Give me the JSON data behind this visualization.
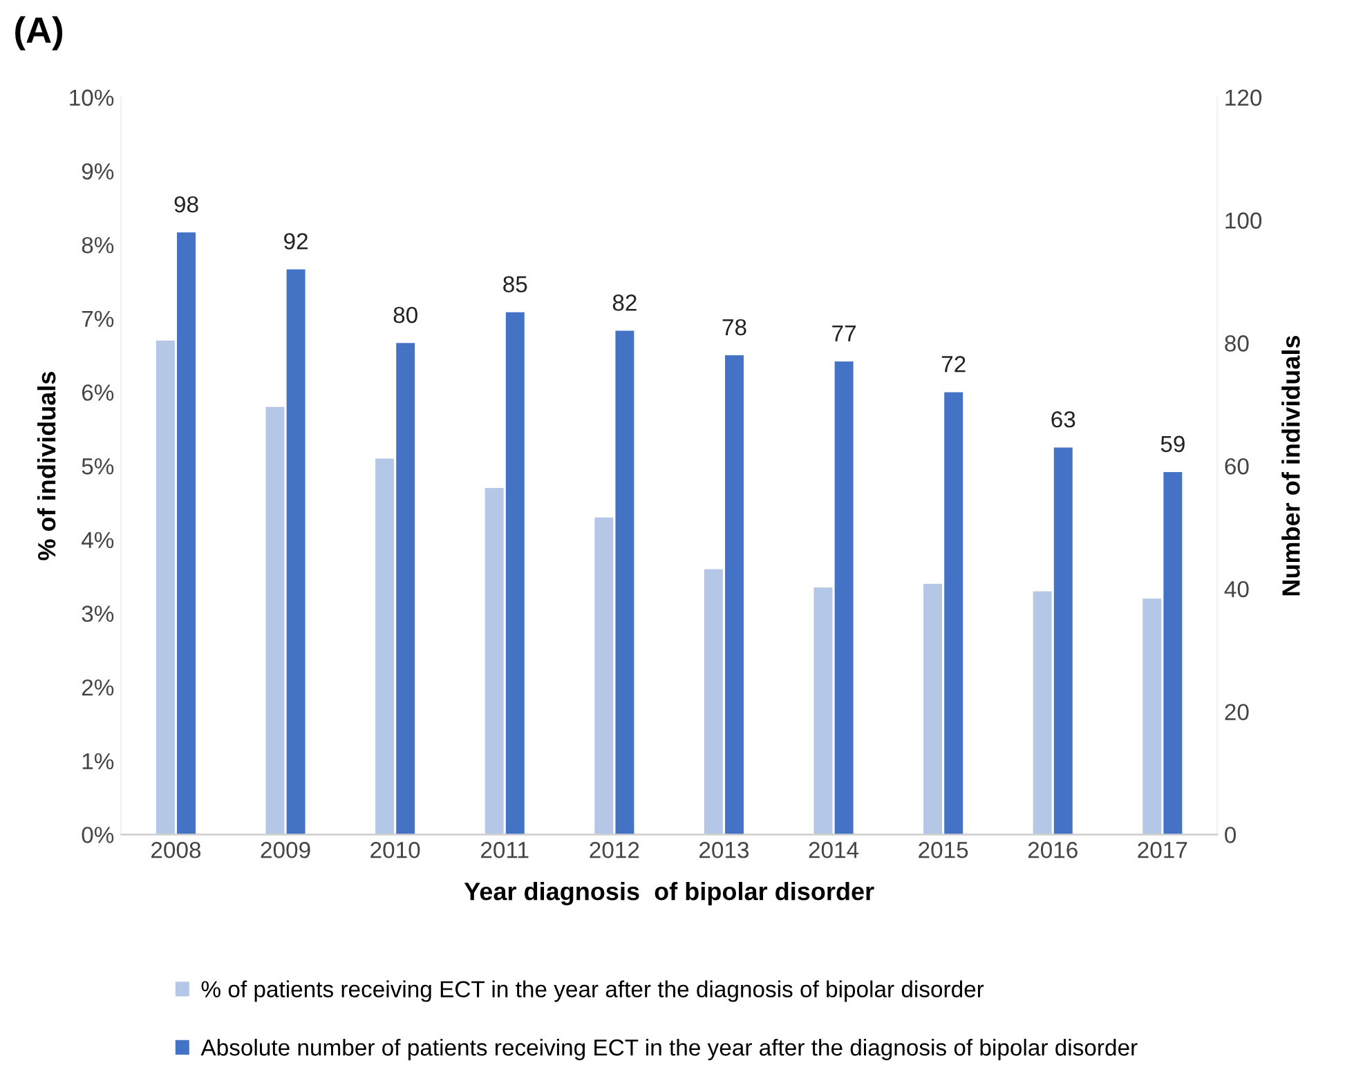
{
  "chart_data": {
    "type": "bar",
    "title": "(A)",
    "xlabel": "Year diagnosis  of bipolar disorder",
    "ylabel": "% of individuals",
    "y2label": "Number of individuals",
    "categories": [
      "2008",
      "2009",
      "2010",
      "2011",
      "2012",
      "2013",
      "2014",
      "2015",
      "2016",
      "2017"
    ],
    "series": [
      {
        "name": "% of patients receiving ECT in the year after the diagnosis of bipolar disorder",
        "color": "#b4c7e7",
        "values": [
          6.7,
          5.8,
          5.1,
          4.7,
          4.3,
          3.6,
          3.35,
          3.4,
          3.3,
          3.2
        ]
      },
      {
        "name": "Absolute number of patients receiving ECT in the year after the diagnosis of bipolar disorder",
        "color": "#4472c4",
        "axis": "y2",
        "values": [
          98,
          92,
          80,
          85,
          82,
          78,
          77,
          72,
          63,
          59
        ],
        "value_labels": [
          "98",
          "92",
          "80",
          "85",
          "82",
          "78",
          "77",
          "72",
          "63",
          "59"
        ]
      }
    ],
    "ylim": [
      0,
      10
    ],
    "yticks": [
      {
        "value": 0,
        "label": "0%"
      },
      {
        "value": 1,
        "label": "1%"
      },
      {
        "value": 2,
        "label": "2%"
      },
      {
        "value": 3,
        "label": "3%"
      },
      {
        "value": 4,
        "label": "4%"
      },
      {
        "value": 5,
        "label": "5%"
      },
      {
        "value": 6,
        "label": "6%"
      },
      {
        "value": 7,
        "label": "7%"
      },
      {
        "value": 8,
        "label": "8%"
      },
      {
        "value": 9,
        "label": "9%"
      },
      {
        "value": 10,
        "label": "10%"
      }
    ],
    "y2lim": [
      0,
      120
    ],
    "y2ticks": [
      0,
      20,
      40,
      60,
      80,
      100,
      120
    ],
    "grid": false,
    "legend": "bottom"
  }
}
